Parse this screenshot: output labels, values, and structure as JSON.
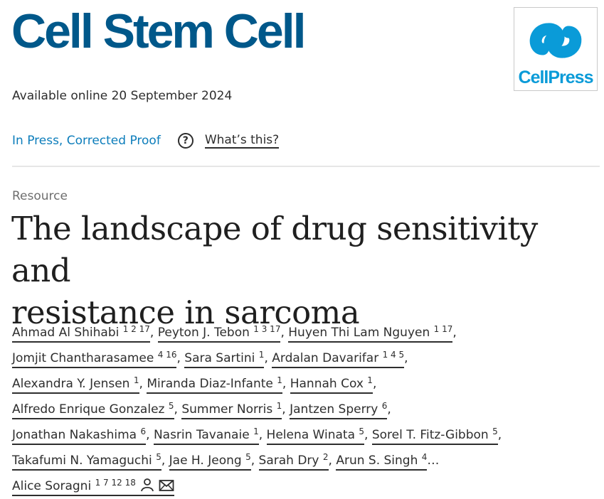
{
  "journal": {
    "title": "Cell Stem Cell",
    "publisher_logo_text": "CellPress"
  },
  "available": "Available online 20 September 2024",
  "status": {
    "label": "In Press, Corrected Proof",
    "help": "What’s this?"
  },
  "article": {
    "type": "Resource",
    "title_line1": "The landscape of drug sensitivity and",
    "title_line2": "resistance in sarcoma"
  },
  "authors": [
    {
      "name": "Ahmad Al Shihabi",
      "sup": "1 2 17"
    },
    {
      "name": "Peyton J. Tebon",
      "sup": "1 3 17"
    },
    {
      "name": "Huyen Thi Lam Nguyen",
      "sup": "1 17"
    },
    {
      "name": "Jomjit Chantharasamee",
      "sup": "4 16"
    },
    {
      "name": "Sara Sartini",
      "sup": "1"
    },
    {
      "name": "Ardalan Davarifar",
      "sup": "1 4 5"
    },
    {
      "name": "Alexandra Y. Jensen",
      "sup": "1"
    },
    {
      "name": "Miranda Diaz-Infante",
      "sup": "1"
    },
    {
      "name": "Hannah Cox",
      "sup": "1"
    },
    {
      "name": "Alfredo Enrique Gonzalez",
      "sup": "5"
    },
    {
      "name": "Summer Norris",
      "sup": "1"
    },
    {
      "name": "Jantzen Sperry",
      "sup": "6"
    },
    {
      "name": "Jonathan Nakashima",
      "sup": "6"
    },
    {
      "name": "Nasrin Tavanaie",
      "sup": "1"
    },
    {
      "name": "Helena Winata",
      "sup": "5"
    },
    {
      "name": "Sorel T. Fitz-Gibbon",
      "sup": "5"
    },
    {
      "name": "Takafumi N. Yamaguchi",
      "sup": "5"
    },
    {
      "name": "Jae H. Jeong",
      "sup": "5"
    },
    {
      "name": "Sarah Dry",
      "sup": "2"
    },
    {
      "name": "Arun S. Singh",
      "sup": "4"
    },
    {
      "name": "Alice Soragni",
      "sup": "1 7 12 18"
    }
  ],
  "ellipsis": "…",
  "icons": {
    "person": "person-icon",
    "email": "email-icon"
  },
  "colors": {
    "brand": "#00588a",
    "link": "#0c7dbb",
    "logo": "#0a9bd8"
  }
}
